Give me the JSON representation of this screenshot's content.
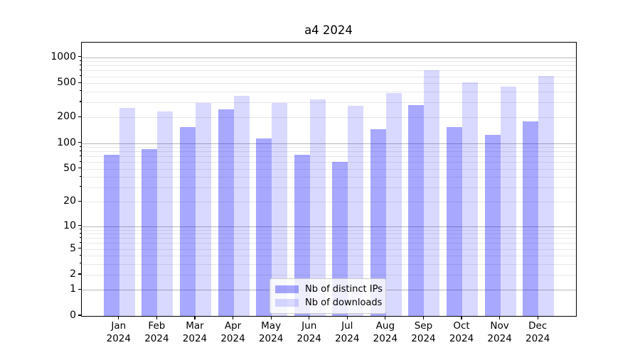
{
  "chart_data": {
    "type": "bar",
    "title": "a4 2024",
    "categories": [
      "Jan 2024",
      "Feb 2024",
      "Mar 2024",
      "Apr 2024",
      "May 2024",
      "Jun 2024",
      "Jul 2024",
      "Aug 2024",
      "Sep 2024",
      "Oct 2024",
      "Nov 2024",
      "Dec 2024"
    ],
    "series": [
      {
        "name": "Nb of distinct IPs",
        "fill": "rgba(0,0,255,0.34)",
        "approx_hex": "#a9a9fa",
        "values": [
          73,
          86,
          154,
          250,
          113,
          73,
          60,
          145,
          279,
          154,
          125,
          179
        ]
      },
      {
        "name": "Nb of downloads",
        "fill": "rgba(0,0,255,0.15)",
        "approx_hex": "#d9d9fb",
        "values": [
          257,
          233,
          292,
          359,
          293,
          321,
          275,
          388,
          706,
          515,
          456,
          603
        ]
      }
    ],
    "xlabel": "",
    "ylabel": "",
    "yscale": "log1p",
    "ylim": [
      0,
      1480
    ],
    "yticks": [
      0,
      1,
      2,
      5,
      10,
      20,
      50,
      100,
      200,
      500,
      1000
    ],
    "grid": {
      "major_decades": [
        1,
        10,
        100
      ],
      "minor_multiples": [
        2,
        3,
        4,
        5,
        6,
        7,
        8,
        9
      ],
      "major_color": "#b8b8b8",
      "minor_color": "#e8e8e8",
      "grid_on": true
    },
    "legend": {
      "position": "lower center",
      "labels": [
        "Nb of distinct IPs",
        "Nb of downloads"
      ]
    }
  }
}
